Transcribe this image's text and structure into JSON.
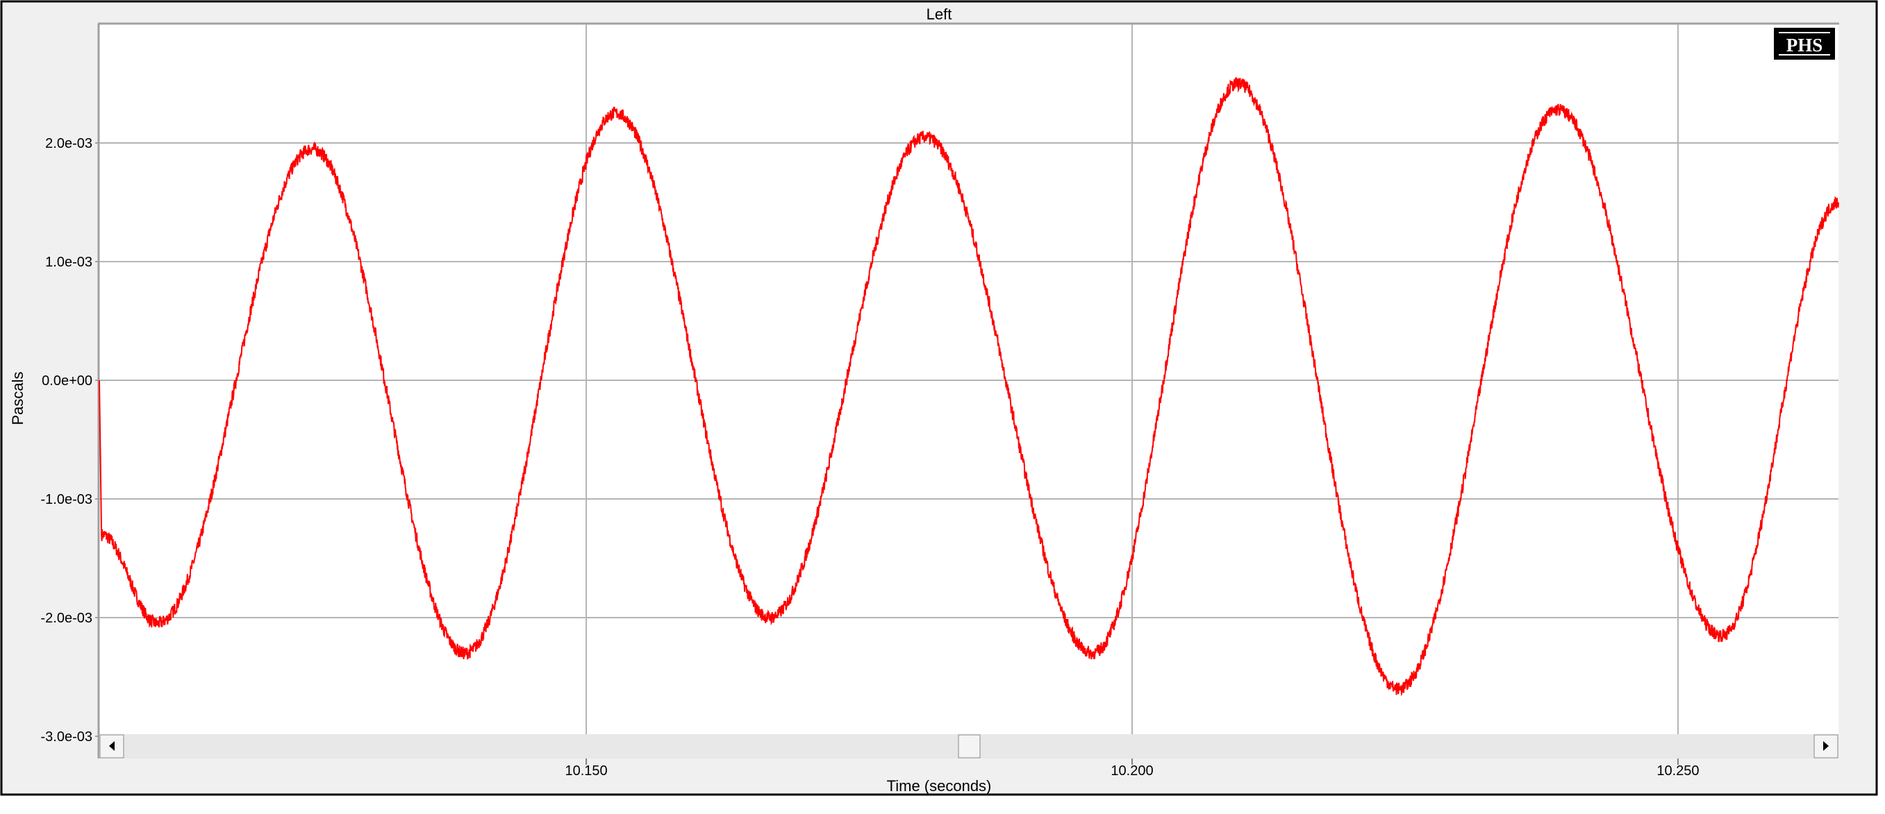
{
  "chart_data": {
    "type": "line",
    "title": "Left",
    "xlabel": "Time (seconds)",
    "ylabel": "Pascals",
    "xlim": [
      10.1054,
      10.2647
    ],
    "ylim": [
      -0.003,
      0.003
    ],
    "x_ticks": [
      10.15,
      10.2,
      10.25
    ],
    "x_tick_labels": [
      "10.150",
      "10.200",
      "10.250"
    ],
    "y_ticks": [
      0.002,
      0.001,
      0.0,
      -0.001,
      -0.002,
      -0.003
    ],
    "y_tick_labels": [
      "2.0e-03",
      "1.0e-03",
      "0.0e+00",
      "-1.0e-03",
      "-2.0e-03",
      "-3.0e-03"
    ],
    "grid": true,
    "line_color": "#ff0000",
    "series": [
      {
        "x": [
          10.1054,
          10.1056,
          10.1107,
          10.1249,
          10.1389,
          10.1527,
          10.1668,
          10.181,
          10.1964,
          10.2097,
          10.2244,
          10.239,
          10.254,
          10.2647
        ],
        "y": [
          0.0,
          -0.0013,
          -0.00205,
          0.00195,
          -0.0023,
          0.00225,
          -0.002,
          0.00205,
          -0.0023,
          0.0025,
          -0.0026,
          0.00228,
          -0.00215,
          0.0015
        ]
      }
    ]
  },
  "logo": {
    "text": "PHS"
  },
  "scrollbar": {
    "position": 0.5
  }
}
